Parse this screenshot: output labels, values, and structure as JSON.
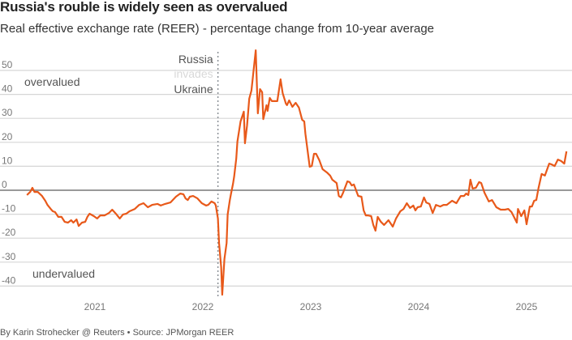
{
  "chart_data": {
    "type": "line",
    "title": "Russia's rouble is widely seen as overvalued",
    "subtitle": "Real effective exchange rate (REER) - percentage change from 10-year average",
    "xlabel": "",
    "ylabel": "",
    "xlim": [
      2020.37,
      2025.4
    ],
    "ylim": [
      -45,
      58
    ],
    "yticks": [
      50,
      40,
      30,
      20,
      10,
      0,
      -10,
      -20,
      -30,
      -40
    ],
    "xticks": [
      {
        "value": 2021,
        "label": "2021"
      },
      {
        "value": 2022,
        "label": "2022"
      },
      {
        "value": 2023,
        "label": "2023"
      },
      {
        "value": 2024,
        "label": "2024"
      },
      {
        "value": 2025,
        "label": "2025"
      }
    ],
    "grid": true,
    "series_color": "#e8591a",
    "annotations": {
      "overvalued": "overvalued",
      "undervalued": "undervalued",
      "event_x": 2022.14,
      "event_line1": "Russia",
      "event_line2": "invades",
      "event_line3": "Ukraine"
    },
    "series": [
      {
        "name": "REER % change from 10-year average",
        "x": [
          2020.37,
          2020.4,
          2020.42,
          2020.44,
          2020.47,
          2020.51,
          2020.54,
          2020.56,
          2020.59,
          2020.61,
          2020.63,
          2020.66,
          2020.69,
          2020.72,
          2020.75,
          2020.78,
          2020.8,
          2020.83,
          2020.85,
          2020.88,
          2020.91,
          2020.93,
          2020.95,
          2020.99,
          2021.02,
          2021.05,
          2021.09,
          2021.13,
          2021.16,
          2021.2,
          2021.23,
          2021.26,
          2021.29,
          2021.32,
          2021.37,
          2021.41,
          2021.45,
          2021.49,
          2021.53,
          2021.58,
          2021.61,
          2021.65,
          2021.7,
          2021.75,
          2021.79,
          2021.82,
          2021.84,
          2021.86,
          2021.88,
          2021.91,
          2021.95,
          2021.99,
          2022.03,
          2022.05,
          2022.08,
          2022.11,
          2022.12,
          2022.14,
          2022.15,
          2022.17,
          2022.18,
          2022.2,
          2022.22,
          2022.23,
          2022.25,
          2022.26,
          2022.28,
          2022.29,
          2022.31,
          2022.32,
          2022.35,
          2022.38,
          2022.39,
          2022.41,
          2022.43,
          2022.45,
          2022.49,
          2022.51,
          2022.53,
          2022.55,
          2022.56,
          2022.59,
          2022.6,
          2022.62,
          2022.64,
          2022.69,
          2022.72,
          2022.74,
          2022.77,
          2022.78,
          2022.8,
          2022.83,
          2022.86,
          2022.89,
          2022.92,
          2022.94,
          2022.95,
          2022.99,
          2023.01,
          2023.03,
          2023.05,
          2023.08,
          2023.11,
          2023.15,
          2023.18,
          2023.2,
          2023.24,
          2023.26,
          2023.28,
          2023.3,
          2023.34,
          2023.36,
          2023.38,
          2023.4,
          2023.44,
          2023.47,
          2023.49,
          2023.51,
          2023.53,
          2023.56,
          2023.58,
          2023.6,
          2023.62,
          2023.65,
          2023.68,
          2023.72,
          2023.76,
          2023.79,
          2023.83,
          2023.86,
          2023.89,
          2023.92,
          2023.95,
          2023.97,
          2023.99,
          2024.02,
          2024.05,
          2024.07,
          2024.1,
          2024.13,
          2024.16,
          2024.2,
          2024.23,
          2024.26,
          2024.31,
          2024.35,
          2024.39,
          2024.42,
          2024.44,
          2024.46,
          2024.48,
          2024.5,
          2024.53,
          2024.56,
          2024.58,
          2024.61,
          2024.65,
          2024.68,
          2024.72,
          2024.76,
          2024.8,
          2024.83,
          2024.86,
          2024.88,
          2024.91,
          2024.92,
          2024.95,
          2024.98,
          2025.0,
          2025.03,
          2025.05,
          2025.07,
          2025.09,
          2025.11,
          2025.14,
          2025.17,
          2025.21,
          2025.23,
          2025.26,
          2025.29,
          2025.32,
          2025.35,
          2025.37
        ],
        "y": [
          -2.0,
          -0.7,
          1.0,
          -0.7,
          -0.7,
          -2.4,
          -4.4,
          -6.1,
          -7.8,
          -8.8,
          -9.1,
          -11.1,
          -11.1,
          -13.2,
          -13.5,
          -12.5,
          -13.5,
          -12.2,
          -14.9,
          -13.5,
          -13.2,
          -11.1,
          -9.8,
          -10.8,
          -11.8,
          -10.5,
          -10.5,
          -9.5,
          -8.1,
          -10.1,
          -11.8,
          -10.1,
          -9.8,
          -8.8,
          -7.8,
          -6.1,
          -5.4,
          -7.1,
          -6.1,
          -5.7,
          -6.4,
          -5.7,
          -5.1,
          -2.7,
          -1.4,
          -1.7,
          -3.4,
          -4.1,
          -2.7,
          -2.4,
          -3.4,
          -5.4,
          -6.4,
          -6.1,
          -4.7,
          -5.4,
          -6.4,
          -11.8,
          -22.0,
          -32.1,
          -43.6,
          -28.7,
          -22.0,
          -10.1,
          -4.1,
          -1.7,
          2.7,
          5.7,
          13.2,
          20.3,
          28.7,
          32.8,
          19.6,
          27.0,
          38.2,
          41.6,
          58.4,
          32.1,
          42.2,
          40.9,
          29.7,
          35.5,
          33.1,
          38.5,
          37.2,
          37.2,
          46.3,
          40.5,
          36.1,
          35.5,
          37.5,
          34.8,
          36.5,
          34.5,
          29.4,
          28.7,
          23.6,
          9.8,
          10.1,
          15.2,
          15.2,
          12.5,
          8.8,
          7.4,
          6.1,
          4.4,
          3.0,
          -2.4,
          -3.0,
          -1.0,
          3.7,
          3.4,
          2.0,
          2.4,
          -2.4,
          -2.7,
          -8.4,
          -10.5,
          -10.5,
          -10.8,
          -14.5,
          -16.9,
          -11.1,
          -13.2,
          -14.5,
          -12.5,
          -15.2,
          -11.8,
          -8.8,
          -7.8,
          -5.4,
          -7.4,
          -6.4,
          -8.4,
          -7.1,
          -6.8,
          -3.0,
          -5.1,
          -5.7,
          -9.5,
          -6.1,
          -6.8,
          -6.1,
          -6.1,
          -4.4,
          -5.4,
          -2.4,
          -2.4,
          -1.4,
          -2.0,
          4.4,
          0.7,
          1.0,
          3.4,
          3.0,
          -1.0,
          -4.7,
          -4.1,
          -7.1,
          -8.1,
          -8.1,
          -7.8,
          -9.1,
          -10.8,
          -13.5,
          -7.8,
          -10.8,
          -8.4,
          -14.2,
          -6.8,
          -6.8,
          -4.4,
          -4.1,
          0.7,
          6.8,
          6.1,
          11.1,
          10.8,
          10.1,
          12.8,
          12.2,
          11.1,
          16.2
        ]
      }
    ]
  },
  "footer": {
    "credit": "By Karin Strohecker @ Reuters • Source: JPMorgan REER"
  }
}
